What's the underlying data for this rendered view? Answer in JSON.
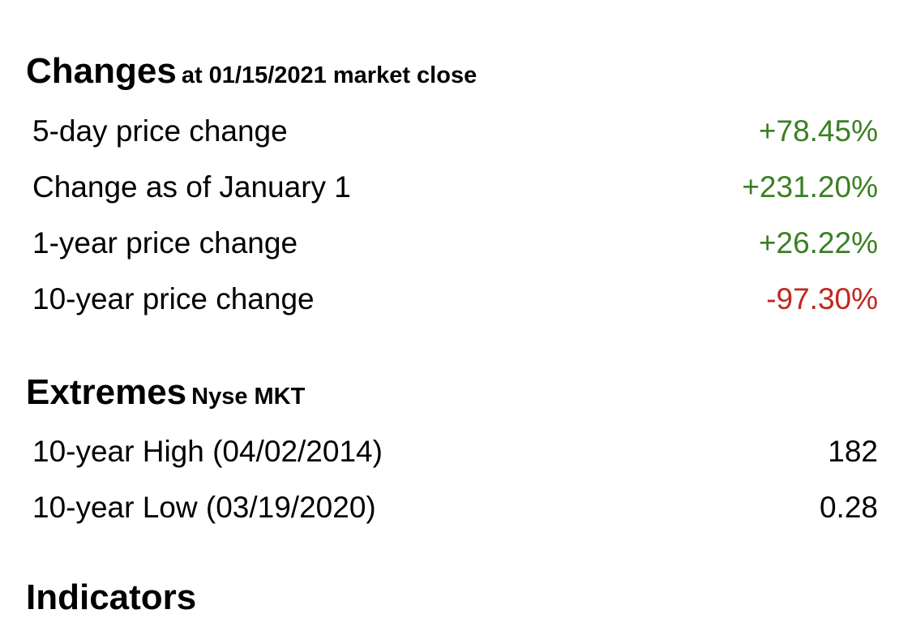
{
  "changes": {
    "title": "Changes",
    "subtitle": "at 01/15/2021 market close",
    "rows": [
      {
        "label": "5-day price change",
        "value": "+78.45%",
        "trend": "positive"
      },
      {
        "label": "Change as of January 1",
        "value": "+231.20%",
        "trend": "positive"
      },
      {
        "label": "1-year price change",
        "value": "+26.22%",
        "trend": "positive"
      },
      {
        "label": "10-year price change",
        "value": "-97.30%",
        "trend": "negative"
      }
    ]
  },
  "extremes": {
    "title": "Extremes",
    "subtitle": "Nyse MKT",
    "rows": [
      {
        "label": "10-year High (04/02/2014)",
        "value": "182"
      },
      {
        "label": "10-year Low (03/19/2020)",
        "value": "0.28"
      }
    ]
  },
  "indicators": {
    "title": "Indicators"
  },
  "colors": {
    "positive": "#3a8022",
    "negative": "#c0281e"
  }
}
